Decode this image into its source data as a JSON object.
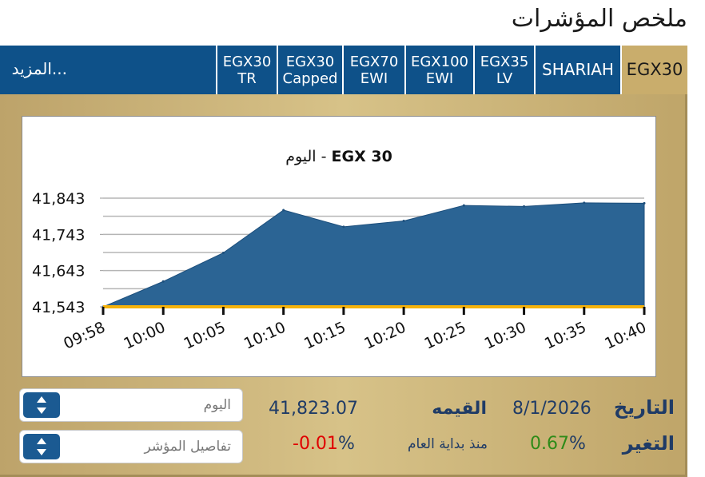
{
  "page_title": "ملخص المؤشرات",
  "tabs": [
    {
      "id": "more",
      "label": "المزيد...",
      "active": false
    },
    {
      "id": "egx30tr",
      "label": "EGX30\nTR",
      "active": false
    },
    {
      "id": "egx30capped",
      "label": "EGX30\nCapped",
      "active": false
    },
    {
      "id": "egx70ewi",
      "label": "EGX70\nEWI",
      "active": false
    },
    {
      "id": "egx100ewi",
      "label": "EGX100\nEWI",
      "active": false
    },
    {
      "id": "egx35lv",
      "label": "EGX35\nLV",
      "active": false
    },
    {
      "id": "shariah",
      "label": "SHARIAH",
      "active": false
    },
    {
      "id": "egx30",
      "label": "EGX30",
      "active": true
    }
  ],
  "chart_data": {
    "type": "area",
    "title": "EGX 30  -  اليوم",
    "title_index": "EGX 30",
    "title_period": "اليوم",
    "title_separator": "-",
    "x": [
      "09:58",
      "10:00",
      "10:05",
      "10:10",
      "10:15",
      "10:20",
      "10:25",
      "10:30",
      "10:35",
      "10:40"
    ],
    "values": [
      41543,
      41613,
      41692,
      41810,
      41764,
      41780,
      41823,
      41820,
      41830,
      41829
    ],
    "yticks": [
      "41,543",
      "41,643",
      "41,743",
      "41,843"
    ],
    "ylim": [
      41543,
      41843
    ],
    "grid": true,
    "colors": {
      "fill": "#2b6494",
      "stroke": "#1d4f7c",
      "baseline": "#f5b20a"
    }
  },
  "info": {
    "date_label": "التاريخ",
    "date_value": "8/1/2026",
    "value_label": "القيمه",
    "value_value": "41,823.07",
    "change_label": "التغير",
    "change_value": "0.67",
    "ytd_label": "منذ بداية العام",
    "ytd_value": "-0.01",
    "percent_sign": "%",
    "period_select": "اليوم",
    "details_select": "تفاصيل المؤشر"
  }
}
